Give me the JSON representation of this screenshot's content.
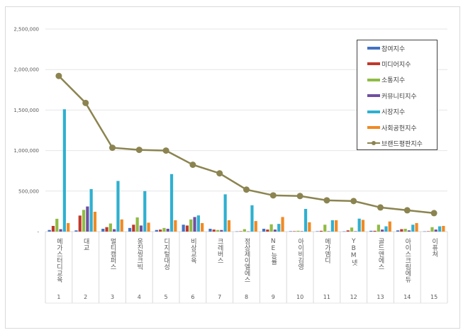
{
  "chart_data": {
    "type": "bar",
    "title": "",
    "xlabel": "",
    "ylabel": "",
    "ylim": [
      0,
      2500000
    ],
    "yticks": [
      "-",
      "500,000",
      "1,000,000",
      "1,500,000",
      "2,000,000",
      "2,500,000"
    ],
    "grid": true,
    "legend_position": "top-right",
    "categories": [
      "메가스터디교육",
      "대교",
      "멀티캠퍼스",
      "웅진씽크빅",
      "디지털대성",
      "비상교육",
      "크레버스",
      "정상제이엘에스",
      "NE능률",
      "아이비김영",
      "메가엠디",
      "YBM넷",
      "골드앤에스",
      "아이스크림에듀",
      "이퓨쳐"
    ],
    "ranks": [
      "1",
      "2",
      "3",
      "4",
      "5",
      "6",
      "7",
      "8",
      "9",
      "10",
      "11",
      "12",
      "13",
      "14",
      "15"
    ],
    "series": [
      {
        "name": "참여지수",
        "type": "bar",
        "color": "#4472c4",
        "values": [
          20000,
          15000,
          35000,
          45000,
          20000,
          85000,
          35000,
          3000,
          35000,
          5000,
          5000,
          3000,
          10000,
          15000,
          3000
        ]
      },
      {
        "name": "미디어지수",
        "type": "bar",
        "color": "#c0392b",
        "values": [
          70000,
          198000,
          55000,
          85000,
          25000,
          75000,
          25000,
          5000,
          25000,
          5000,
          10000,
          15000,
          10000,
          30000,
          5000
        ]
      },
      {
        "name": "소통지수",
        "type": "bar",
        "color": "#8fbc45",
        "values": [
          158000,
          268000,
          100000,
          175000,
          45000,
          150000,
          20000,
          30000,
          90000,
          10000,
          85000,
          50000,
          85000,
          35000,
          55000
        ]
      },
      {
        "name": "커뮤니티지수",
        "type": "bar",
        "color": "#7050a0",
        "values": [
          30000,
          310000,
          30000,
          75000,
          35000,
          180000,
          20000,
          3000,
          25000,
          5000,
          5000,
          5000,
          25000,
          15000,
          25000
        ]
      },
      {
        "name": "시장지수",
        "type": "bar",
        "color": "#2fb0d0",
        "values": [
          1510000,
          525000,
          625000,
          500000,
          710000,
          200000,
          460000,
          325000,
          95000,
          280000,
          140000,
          160000,
          65000,
          85000,
          65000
        ]
      },
      {
        "name": "사회공헌지수",
        "type": "bar",
        "color": "#f08a24",
        "values": [
          105000,
          245000,
          150000,
          110000,
          140000,
          105000,
          140000,
          130000,
          180000,
          115000,
          140000,
          145000,
          125000,
          105000,
          70000
        ]
      },
      {
        "name": "브랜드평판지수",
        "type": "line",
        "color": "#8b8450",
        "values": [
          1921000,
          1588000,
          1035000,
          1009000,
          1000000,
          825000,
          719000,
          518000,
          447000,
          439000,
          386000,
          377000,
          298000,
          263000,
          228000
        ]
      }
    ]
  }
}
